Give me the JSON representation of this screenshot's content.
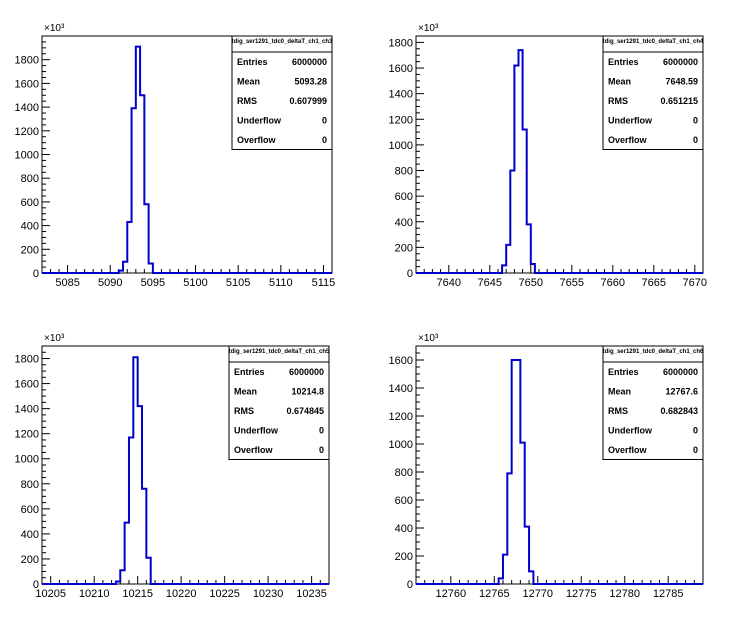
{
  "chart_data": [
    {
      "type": "histogram",
      "title": "tdig_ser1291_tdc0_deltaT_ch1_ch3",
      "y_exponent_label": "×10³",
      "xlim": [
        5082,
        5116
      ],
      "ylim": [
        0,
        2000
      ],
      "x_ticks": [
        5085,
        5090,
        5095,
        5100,
        5105,
        5110,
        5115
      ],
      "y_ticks": [
        0,
        200,
        400,
        600,
        800,
        1000,
        1200,
        1400,
        1600,
        1800
      ],
      "bin_edges": [
        5091.0,
        5091.5,
        5092.0,
        5092.5,
        5093.0,
        5093.5,
        5094.0,
        5094.5,
        5095.0
      ],
      "values": [
        20,
        95,
        430,
        1390,
        1910,
        1500,
        580,
        80
      ],
      "stats": {
        "title": "tdig_ser1291_tdc0_deltaT_ch1_ch3",
        "rows": [
          {
            "label": "Entries",
            "value": "6000000"
          },
          {
            "label": "Mean",
            "value": "5093.28"
          },
          {
            "label": "RMS",
            "value": "0.607999"
          },
          {
            "label": "Underflow",
            "value": "0"
          },
          {
            "label": "Overflow",
            "value": "0"
          }
        ]
      }
    },
    {
      "type": "histogram",
      "title": "tdig_ser1291_tdc0_deltaT_ch1_ch4",
      "y_exponent_label": "×10³",
      "xlim": [
        7636,
        7671
      ],
      "ylim": [
        0,
        1850
      ],
      "x_ticks": [
        7640,
        7645,
        7650,
        7655,
        7660,
        7665,
        7670
      ],
      "y_ticks": [
        0,
        200,
        400,
        600,
        800,
        1000,
        1200,
        1400,
        1600,
        1800
      ],
      "bin_edges": [
        7646.5,
        7647.0,
        7647.5,
        7648.0,
        7648.5,
        7649.0,
        7649.5,
        7650.0,
        7650.5
      ],
      "values": [
        60,
        220,
        800,
        1620,
        1740,
        1120,
        380,
        70
      ],
      "stats": {
        "title": "tdig_ser1291_tdc0_deltaT_ch1_ch4",
        "rows": [
          {
            "label": "Entries",
            "value": "6000000"
          },
          {
            "label": "Mean",
            "value": "7648.59"
          },
          {
            "label": "RMS",
            "value": "0.651215"
          },
          {
            "label": "Underflow",
            "value": "0"
          },
          {
            "label": "Overflow",
            "value": "0"
          }
        ]
      }
    },
    {
      "type": "histogram",
      "title": "tdig_ser1291_tdc0_deltaT_ch1_ch5",
      "y_exponent_label": "×10³",
      "xlim": [
        10204,
        10237
      ],
      "ylim": [
        0,
        1900
      ],
      "x_ticks": [
        10205,
        10210,
        10215,
        10220,
        10225,
        10230,
        10235
      ],
      "y_ticks": [
        0,
        200,
        400,
        600,
        800,
        1000,
        1200,
        1400,
        1600,
        1800
      ],
      "bin_edges": [
        10212.5,
        10213.0,
        10213.5,
        10214.0,
        10214.5,
        10215.0,
        10215.5,
        10216.0,
        10216.5
      ],
      "values": [
        20,
        110,
        490,
        1170,
        1810,
        1420,
        760,
        210
      ],
      "stats": {
        "title": "tdig_ser1291_tdc0_deltaT_ch1_ch5",
        "rows": [
          {
            "label": "Entries",
            "value": "6000000"
          },
          {
            "label": "Mean",
            "value": "10214.8"
          },
          {
            "label": "RMS",
            "value": "0.674845"
          },
          {
            "label": "Underflow",
            "value": "0"
          },
          {
            "label": "Overflow",
            "value": "0"
          }
        ]
      }
    },
    {
      "type": "histogram",
      "title": "tdig_ser1291_tdc0_deltaT_ch1_ch6",
      "y_exponent_label": "×10³",
      "xlim": [
        12756,
        12789
      ],
      "ylim": [
        0,
        1700
      ],
      "x_ticks": [
        12760,
        12765,
        12770,
        12775,
        12780,
        12785
      ],
      "y_ticks": [
        0,
        200,
        400,
        600,
        800,
        1000,
        1200,
        1400,
        1600
      ],
      "bin_edges": [
        12765.5,
        12766.0,
        12766.5,
        12767.0,
        12767.5,
        12768.0,
        12768.5,
        12769.0,
        12769.5
      ],
      "values": [
        40,
        210,
        790,
        1600,
        1600,
        1010,
        410,
        90
      ],
      "stats": {
        "title": "tdig_ser1291_tdc0_deltaT_ch1_ch6",
        "rows": [
          {
            "label": "Entries",
            "value": "6000000"
          },
          {
            "label": "Mean",
            "value": "12767.6"
          },
          {
            "label": "RMS",
            "value": "0.682843"
          },
          {
            "label": "Underflow",
            "value": "0"
          },
          {
            "label": "Overflow",
            "value": "0"
          }
        ]
      }
    }
  ]
}
